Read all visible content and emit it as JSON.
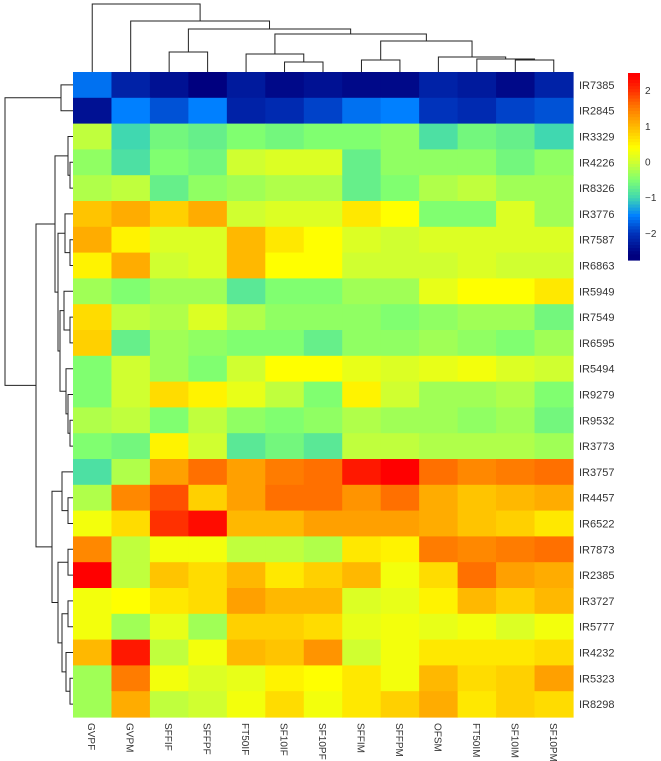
{
  "chart_data": {
    "type": "heatmap",
    "title": "",
    "columns": [
      "GVPF",
      "GVPM",
      "SFFIF",
      "SFFPF",
      "FT50IF",
      "SF10IF",
      "SF10PF",
      "SFFIM",
      "SFFPM",
      "OFSM",
      "FT50IM",
      "SF10IM",
      "SF10PM"
    ],
    "rows": [
      "IR7385",
      "IR2845",
      "IR3329",
      "IR4226",
      "IR8326",
      "IR3776",
      "IR7587",
      "IR6863",
      "IR5949",
      "IR7549",
      "IR6595",
      "IR5494",
      "IR9279",
      "IR9532",
      "IR3773",
      "IR3757",
      "IR4457",
      "IR6522",
      "IR7873",
      "IR2385",
      "IR3727",
      "IR5777",
      "IR4232",
      "IR5323",
      "IR8298"
    ],
    "values": [
      [
        -1.6,
        -2.2,
        -2.4,
        -2.6,
        -2.3,
        -2.5,
        -2.4,
        -2.5,
        -2.5,
        -2.2,
        -2.3,
        -2.5,
        -2.2
      ],
      [
        -2.4,
        -1.5,
        -1.8,
        -1.5,
        -2.2,
        -2.1,
        -1.9,
        -1.6,
        -1.5,
        -2.0,
        -2.1,
        -1.9,
        -1.8
      ],
      [
        -0.1,
        -1.0,
        -0.6,
        -0.7,
        -0.5,
        -0.6,
        -0.5,
        -0.5,
        -0.4,
        -0.9,
        -0.6,
        -0.7,
        -1.0
      ],
      [
        -0.4,
        -0.9,
        -0.5,
        -0.6,
        0.0,
        0.1,
        0.1,
        -0.7,
        -0.4,
        -0.4,
        -0.4,
        -0.6,
        -0.4
      ],
      [
        -0.2,
        -0.1,
        -0.7,
        -0.4,
        -0.3,
        -0.2,
        -0.2,
        -0.7,
        -0.5,
        -0.2,
        -0.1,
        -0.3,
        -0.3
      ],
      [
        0.9,
        1.1,
        0.8,
        1.1,
        0.0,
        0.1,
        0.1,
        0.6,
        0.4,
        -0.5,
        -0.5,
        0.1,
        -0.3
      ],
      [
        1.1,
        0.5,
        0.1,
        0.1,
        1.0,
        0.6,
        0.4,
        0.1,
        0.0,
        0.1,
        0.1,
        0.1,
        0.1
      ],
      [
        0.5,
        1.1,
        0.0,
        0.1,
        1.0,
        0.4,
        0.4,
        0.0,
        0.0,
        0.0,
        0.1,
        0.0,
        0.0
      ],
      [
        -0.3,
        -0.5,
        -0.3,
        -0.3,
        -0.8,
        -0.5,
        -0.5,
        -0.3,
        -0.3,
        0.2,
        0.4,
        0.4,
        0.6
      ],
      [
        0.7,
        -0.1,
        -0.2,
        0.1,
        -0.2,
        -0.4,
        -0.4,
        -0.4,
        -0.5,
        -0.4,
        -0.3,
        -0.3,
        -0.6
      ],
      [
        0.8,
        -0.7,
        -0.3,
        -0.4,
        -0.5,
        -0.5,
        -0.7,
        -0.4,
        -0.4,
        -0.3,
        -0.4,
        -0.5,
        -0.3
      ],
      [
        -0.5,
        0.0,
        -0.3,
        -0.5,
        0.0,
        0.4,
        0.4,
        0.2,
        0.1,
        0.2,
        0.3,
        0.1,
        0.0
      ],
      [
        -0.5,
        0.0,
        0.7,
        0.5,
        0.2,
        -0.1,
        -0.5,
        0.5,
        0.0,
        -0.3,
        -0.3,
        -0.2,
        -0.5
      ],
      [
        -0.2,
        -0.1,
        -0.5,
        -0.1,
        -0.4,
        -0.5,
        -0.4,
        -0.2,
        -0.3,
        -0.3,
        -0.4,
        -0.3,
        -0.6
      ],
      [
        -0.5,
        -0.6,
        0.5,
        0.0,
        -0.8,
        -0.6,
        -0.8,
        -0.1,
        -0.1,
        -0.2,
        -0.2,
        -0.2,
        -0.3
      ],
      [
        -0.9,
        -0.2,
        1.2,
        1.6,
        1.2,
        1.5,
        1.6,
        2.2,
        2.4,
        1.6,
        1.4,
        1.5,
        1.6
      ],
      [
        -0.2,
        1.4,
        1.8,
        0.8,
        1.2,
        1.6,
        1.6,
        1.3,
        1.6,
        1.1,
        0.9,
        1.0,
        1.1
      ],
      [
        0.3,
        0.7,
        2.0,
        2.3,
        1.0,
        1.0,
        1.2,
        1.2,
        1.2,
        1.1,
        0.9,
        0.8,
        0.6
      ],
      [
        1.4,
        -0.1,
        0.3,
        0.3,
        -0.1,
        -0.1,
        -0.2,
        0.6,
        0.5,
        1.5,
        1.4,
        1.5,
        1.6
      ],
      [
        2.4,
        -0.1,
        0.9,
        0.7,
        1.0,
        0.6,
        0.8,
        1.0,
        0.3,
        0.7,
        1.6,
        1.2,
        1.1
      ],
      [
        0.3,
        0.4,
        0.6,
        0.7,
        1.2,
        1.0,
        1.0,
        0.1,
        0.2,
        0.5,
        1.0,
        0.8,
        1.0
      ],
      [
        0.3,
        -0.3,
        0.2,
        -0.3,
        0.8,
        0.8,
        0.7,
        0.2,
        0.3,
        0.2,
        0.3,
        0.1,
        0.3
      ],
      [
        1.0,
        2.2,
        -0.1,
        0.3,
        1.0,
        0.9,
        1.3,
        0.0,
        0.3,
        0.6,
        0.6,
        0.6,
        0.7
      ],
      [
        -0.3,
        1.5,
        0.3,
        0.1,
        0.2,
        0.5,
        0.4,
        0.6,
        0.3,
        1.0,
        0.7,
        0.8,
        1.2
      ],
      [
        -0.3,
        1.1,
        -0.1,
        0.0,
        0.3,
        0.7,
        0.3,
        0.6,
        0.8,
        1.1,
        0.6,
        0.8,
        0.7
      ]
    ],
    "color_range": [
      -2.76,
      2.48
    ],
    "colorbar_ticks": [
      2,
      1,
      0,
      -1,
      -2
    ],
    "colorbar_tick_labels": [
      "2",
      "1",
      "0",
      "−1",
      "−2"
    ],
    "colormap": [
      "#00007f",
      "#0033bb",
      "#0080ff",
      "#40d8b0",
      "#80ff70",
      "#d0ff30",
      "#ffff00",
      "#ffd000",
      "#ffa000",
      "#ff7000",
      "#ff3000",
      "#ff0000"
    ],
    "row_dendrogram": true,
    "column_dendrogram": true,
    "legend": "top-right"
  }
}
